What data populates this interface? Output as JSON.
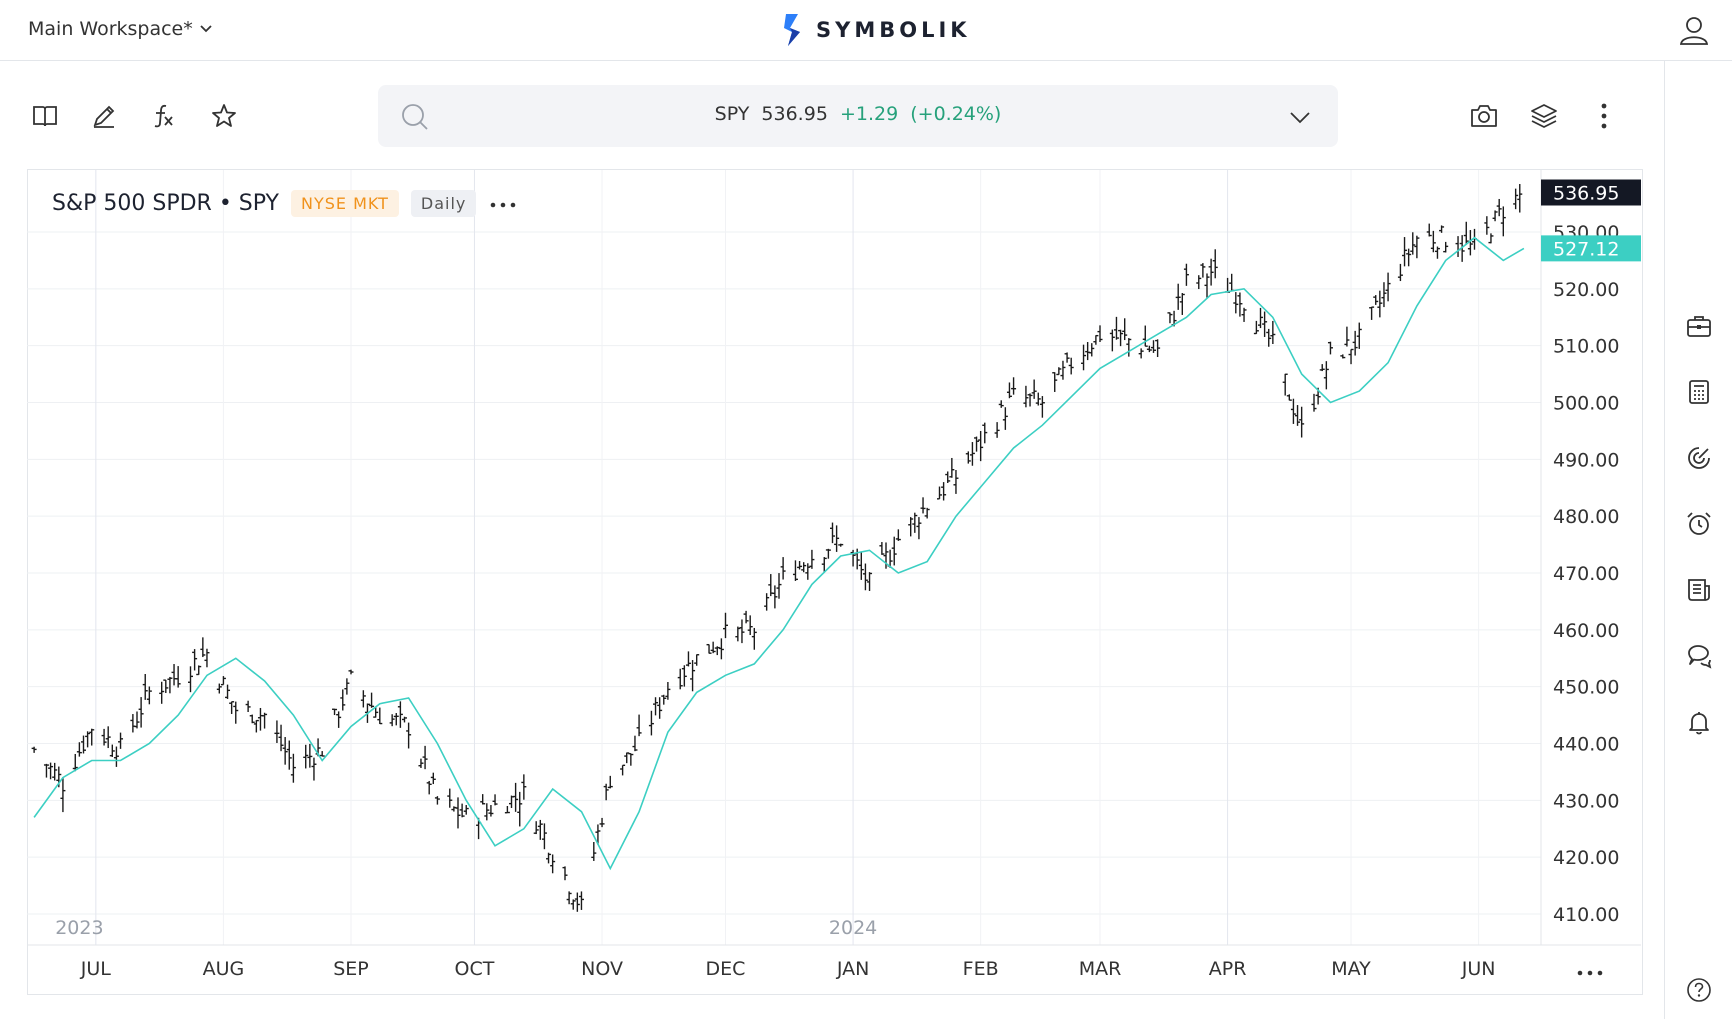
{
  "header": {
    "workspace": "Main Workspace*",
    "brand": "SYMBOLIK"
  },
  "quote": {
    "symbol": "SPY",
    "price": "536.95",
    "change": "+1.29",
    "change_pct": "(+0.24%)"
  },
  "chart_header": {
    "title": "S&P 500 SPDR • SPY",
    "exchange": "NYSE MKT",
    "interval": "Daily"
  },
  "icons": {
    "toolbar": [
      "book-icon",
      "pencil-icon",
      "function-icon",
      "star-icon"
    ],
    "right_toolbar": [
      "camera-icon",
      "layers-icon",
      "more-vertical-icon"
    ],
    "sidebar": [
      "briefcase-icon",
      "calculator-icon",
      "target-icon",
      "alarm-icon",
      "news-icon",
      "chat-icon",
      "bell-icon",
      "help-icon"
    ]
  },
  "colors": {
    "sma": "#3ccfc3",
    "price_bar": "#1a1a1a",
    "up": "#26a17b",
    "exchange_badge": "#f0921c"
  },
  "chart_data": {
    "type": "ohlc",
    "title": "S&P 500 SPDR • SPY",
    "interval": "Daily",
    "ylim": [
      405,
      540
    ],
    "y_ticks": [
      "410.00",
      "420.00",
      "430.00",
      "440.00",
      "450.00",
      "460.00",
      "470.00",
      "480.00",
      "490.00",
      "500.00",
      "510.00",
      "520.00",
      "530.00"
    ],
    "x_ticks": [
      "JUL",
      "AUG",
      "SEP",
      "OCT",
      "NOV",
      "DEC",
      "JAN",
      "FEB",
      "MAR",
      "APR",
      "MAY",
      "JUN"
    ],
    "year_labels": [
      "2023",
      "2024"
    ],
    "last_price_label": "536.95",
    "ma_label": "527.12",
    "price_close": [
      [
        "2023-06-16",
        439
      ],
      [
        "2023-06-23",
        433
      ],
      [
        "2023-06-30",
        443
      ],
      [
        "2023-07-07",
        439
      ],
      [
        "2023-07-14",
        449
      ],
      [
        "2023-07-21",
        452
      ],
      [
        "2023-07-28",
        456
      ],
      [
        "2023-08-04",
        446
      ],
      [
        "2023-08-11",
        445
      ],
      [
        "2023-08-18",
        436
      ],
      [
        "2023-08-25",
        439
      ],
      [
        "2023-09-01",
        451
      ],
      [
        "2023-09-08",
        445
      ],
      [
        "2023-09-15",
        443
      ],
      [
        "2023-09-22",
        430
      ],
      [
        "2023-09-29",
        427
      ],
      [
        "2023-10-06",
        429
      ],
      [
        "2023-10-13",
        431
      ],
      [
        "2023-10-20",
        421
      ],
      [
        "2023-10-27",
        411
      ],
      [
        "2023-11-03",
        434
      ],
      [
        "2023-11-10",
        440
      ],
      [
        "2023-11-17",
        450
      ],
      [
        "2023-11-24",
        455
      ],
      [
        "2023-12-01",
        459
      ],
      [
        "2023-12-08",
        460
      ],
      [
        "2023-12-15",
        469
      ],
      [
        "2023-12-22",
        473
      ],
      [
        "2023-12-29",
        476
      ],
      [
        "2024-01-05",
        468
      ],
      [
        "2024-01-12",
        476
      ],
      [
        "2024-01-19",
        482
      ],
      [
        "2024-01-26",
        487
      ],
      [
        "2024-02-02",
        494
      ],
      [
        "2024-02-09",
        501
      ],
      [
        "2024-02-16",
        500
      ],
      [
        "2024-02-23",
        507
      ],
      [
        "2024-03-01",
        512
      ],
      [
        "2024-03-08",
        511
      ],
      [
        "2024-03-15",
        509
      ],
      [
        "2024-03-22",
        521
      ],
      [
        "2024-03-28",
        523
      ],
      [
        "2024-04-05",
        518
      ],
      [
        "2024-04-12",
        510
      ],
      [
        "2024-04-19",
        495
      ],
      [
        "2024-04-26",
        508
      ],
      [
        "2024-05-03",
        511
      ],
      [
        "2024-05-10",
        520
      ],
      [
        "2024-05-17",
        529
      ],
      [
        "2024-05-24",
        529
      ],
      [
        "2024-05-31",
        527
      ],
      [
        "2024-06-07",
        534
      ],
      [
        "2024-06-12",
        536.95
      ]
    ],
    "sma_close": [
      [
        "2023-06-16",
        427
      ],
      [
        "2023-06-23",
        434
      ],
      [
        "2023-06-30",
        437
      ],
      [
        "2023-07-07",
        437
      ],
      [
        "2023-07-14",
        440
      ],
      [
        "2023-07-21",
        445
      ],
      [
        "2023-07-28",
        452
      ],
      [
        "2023-08-04",
        455
      ],
      [
        "2023-08-11",
        451
      ],
      [
        "2023-08-18",
        445
      ],
      [
        "2023-08-25",
        437
      ],
      [
        "2023-09-01",
        443
      ],
      [
        "2023-09-08",
        447
      ],
      [
        "2023-09-15",
        448
      ],
      [
        "2023-09-22",
        440
      ],
      [
        "2023-09-29",
        430
      ],
      [
        "2023-10-06",
        422
      ],
      [
        "2023-10-13",
        425
      ],
      [
        "2023-10-20",
        432
      ],
      [
        "2023-10-27",
        428
      ],
      [
        "2023-11-03",
        418
      ],
      [
        "2023-11-10",
        428
      ],
      [
        "2023-11-17",
        442
      ],
      [
        "2023-11-24",
        449
      ],
      [
        "2023-12-01",
        452
      ],
      [
        "2023-12-08",
        454
      ],
      [
        "2023-12-15",
        460
      ],
      [
        "2023-12-22",
        468
      ],
      [
        "2023-12-29",
        473
      ],
      [
        "2024-01-05",
        474
      ],
      [
        "2024-01-12",
        470
      ],
      [
        "2024-01-19",
        472
      ],
      [
        "2024-01-26",
        480
      ],
      [
        "2024-02-02",
        486
      ],
      [
        "2024-02-09",
        492
      ],
      [
        "2024-02-16",
        496
      ],
      [
        "2024-02-23",
        501
      ],
      [
        "2024-03-01",
        506
      ],
      [
        "2024-03-08",
        509
      ],
      [
        "2024-03-15",
        512
      ],
      [
        "2024-03-22",
        515
      ],
      [
        "2024-03-28",
        519
      ],
      [
        "2024-04-05",
        520
      ],
      [
        "2024-04-12",
        515
      ],
      [
        "2024-04-19",
        505
      ],
      [
        "2024-04-26",
        500
      ],
      [
        "2024-05-03",
        502
      ],
      [
        "2024-05-10",
        507
      ],
      [
        "2024-05-17",
        517
      ],
      [
        "2024-05-24",
        525
      ],
      [
        "2024-05-31",
        529
      ],
      [
        "2024-06-07",
        525
      ],
      [
        "2024-06-12",
        527.12
      ]
    ]
  }
}
